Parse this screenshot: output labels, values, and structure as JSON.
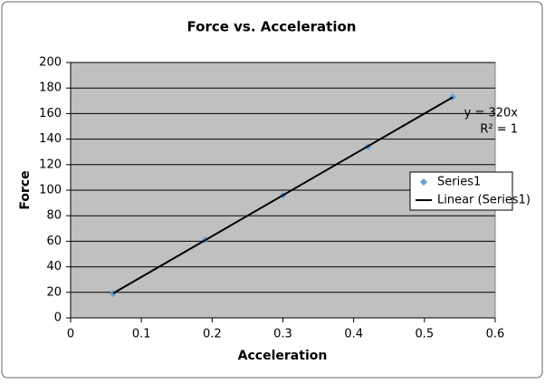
{
  "chart_data": {
    "type": "scatter",
    "title": "Force vs. Acceleration",
    "x_label": "Acceleration",
    "y_label": "Force",
    "series": [
      {
        "name": "Series1",
        "color": "#6a9fd4",
        "x": [
          0.06,
          0.19,
          0.3,
          0.42,
          0.54
        ],
        "values": [
          19,
          61,
          96,
          134,
          173
        ]
      },
      {
        "name": "Linear (Series1)",
        "type": "line",
        "color": "#000000",
        "x": [
          0.06,
          0.54
        ],
        "values": [
          19.2,
          172.8
        ]
      }
    ],
    "annotations": [
      "y = 320x",
      "R² = 1"
    ],
    "xlim": [
      0,
      0.6
    ],
    "xticks": [
      0,
      0.1,
      0.2,
      0.3,
      0.4,
      0.5,
      0.6
    ],
    "ylim": [
      0,
      200
    ],
    "yticks": [
      0,
      20,
      40,
      60,
      80,
      100,
      120,
      140,
      160,
      180,
      200
    ],
    "grid": true,
    "legend": "right",
    "plot_background": "#c0c0c0"
  }
}
